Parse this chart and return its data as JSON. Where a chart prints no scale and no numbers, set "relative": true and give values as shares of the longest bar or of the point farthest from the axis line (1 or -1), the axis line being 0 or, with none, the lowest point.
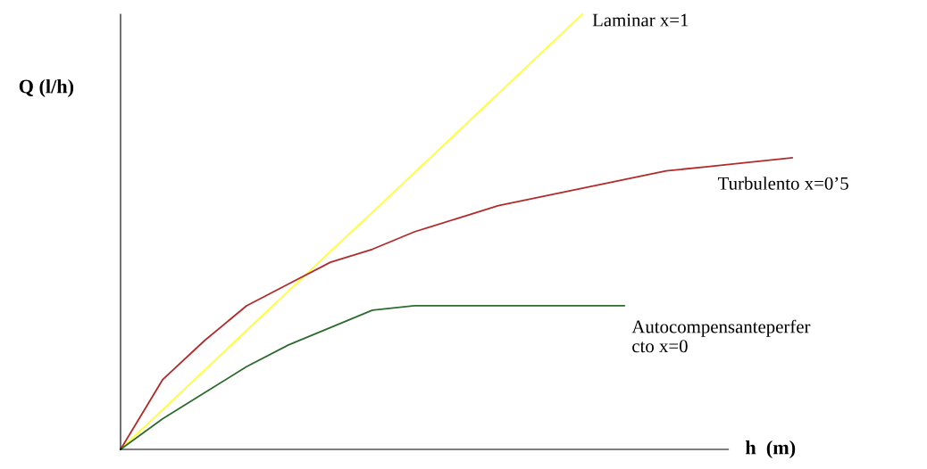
{
  "chart_data": {
    "type": "line",
    "relative": true,
    "xlabel": "h  (m)",
    "ylabel": "Q (l/h)",
    "legend": false,
    "categories": [
      null,
      null,
      null,
      null,
      null,
      null,
      null,
      null,
      null,
      null,
      null,
      null,
      null,
      null,
      null,
      null,
      null
    ],
    "series": [
      {
        "name": "Laminar x=1",
        "color": "#ffff33",
        "values": [
          0,
          0.091,
          0.182,
          0.273,
          0.364,
          0.455,
          0.545,
          0.636,
          0.727,
          0.818,
          0.909,
          1,
          null,
          null,
          null,
          null,
          null
        ]
      },
      {
        "name": "Turbulento x=0’5",
        "color": "#b22b2b",
        "values": [
          0,
          0.16,
          0.25,
          0.33,
          0.38,
          0.43,
          0.46,
          0.5,
          0.53,
          0.56,
          0.58,
          0.6,
          0.62,
          0.64,
          0.65,
          0.66,
          0.67
        ]
      },
      {
        "name": "Autocompensanteperfer\ncto x=0",
        "color": "#2e6b2e",
        "values": [
          0,
          0.07,
          0.13,
          0.19,
          0.24,
          0.28,
          0.32,
          0.33,
          0.33,
          0.33,
          0.33,
          0.33,
          0.33,
          null,
          null,
          null,
          null
        ]
      }
    ]
  }
}
